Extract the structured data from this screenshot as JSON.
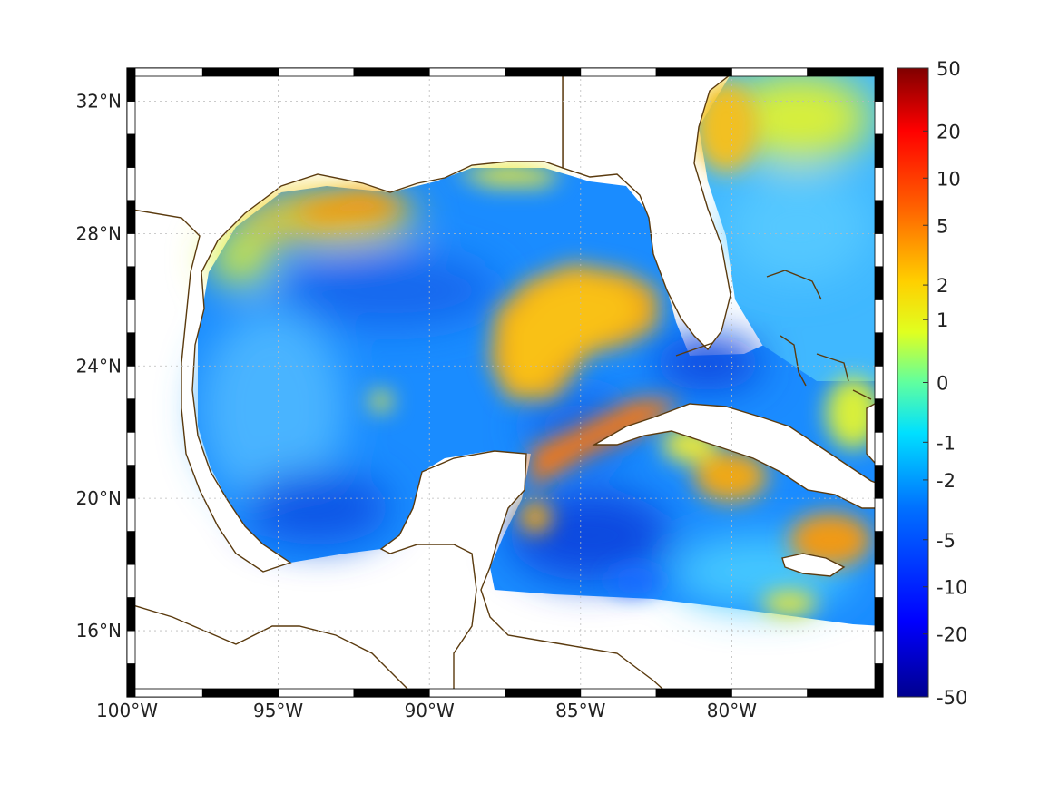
{
  "map": {
    "lon_range": [
      -100,
      -75
    ],
    "lat_range": [
      14,
      33
    ],
    "grid": true,
    "frame_style": "alternating black-white border",
    "coastline_color": "#5a3a0e",
    "land_color": "#ffffff",
    "lon_ticks": [
      {
        "value": -100,
        "label": "100°W"
      },
      {
        "value": -95,
        "label": "95°W"
      },
      {
        "value": -90,
        "label": "90°W"
      },
      {
        "value": -85,
        "label": "85°W"
      },
      {
        "value": -80,
        "label": "80°W"
      }
    ],
    "lat_ticks": [
      {
        "value": 32,
        "label": "32°N"
      },
      {
        "value": 28,
        "label": "28°N"
      },
      {
        "value": 24,
        "label": "24°N"
      },
      {
        "value": 20,
        "label": "20°N"
      },
      {
        "value": 16,
        "label": "16°N"
      }
    ]
  },
  "colorbar": {
    "scale": "nonlinear",
    "colormap": "jet",
    "ticks": [
      {
        "value": 50,
        "label": "50"
      },
      {
        "value": 20,
        "label": "20"
      },
      {
        "value": 10,
        "label": "10"
      },
      {
        "value": 5,
        "label": "5"
      },
      {
        "value": 2,
        "label": "2"
      },
      {
        "value": 1,
        "label": "1"
      },
      {
        "value": 0,
        "label": "0"
      },
      {
        "value": -1,
        "label": "-1"
      },
      {
        "value": -2,
        "label": "-2"
      },
      {
        "value": -5,
        "label": "-5"
      },
      {
        "value": -10,
        "label": "-10"
      },
      {
        "value": -20,
        "label": "-20"
      },
      {
        "value": -50,
        "label": "-50"
      }
    ]
  },
  "field_features": [
    {
      "name": "loop-current-warm-anomaly",
      "lon": -86.5,
      "lat": 25.5,
      "level": 4
    },
    {
      "name": "northern-shelf-warm-band",
      "lon": -93.5,
      "lat": 28.5,
      "level": 3
    },
    {
      "name": "caribbean-warm-band",
      "lon": -84.5,
      "lat": 21.5,
      "level": 4
    },
    {
      "name": "east-florida-warm-area",
      "lon": -78.5,
      "lat": 30.5,
      "level": 2
    },
    {
      "name": "jamaica-warm-patch",
      "lon": -76.5,
      "lat": 18.8,
      "level": 3
    },
    {
      "name": "cuba-south-warm-patch",
      "lon": -79.5,
      "lat": 20.8,
      "level": 3
    },
    {
      "name": "florida-straits-cold",
      "lon": -81.5,
      "lat": 24.2,
      "level": -8
    },
    {
      "name": "western-gulf-cold",
      "lon": -94.0,
      "lat": 20.0,
      "level": -7
    },
    {
      "name": "yucatan-basin-cold",
      "lon": -83.5,
      "lat": 18.5,
      "level": -9
    }
  ]
}
